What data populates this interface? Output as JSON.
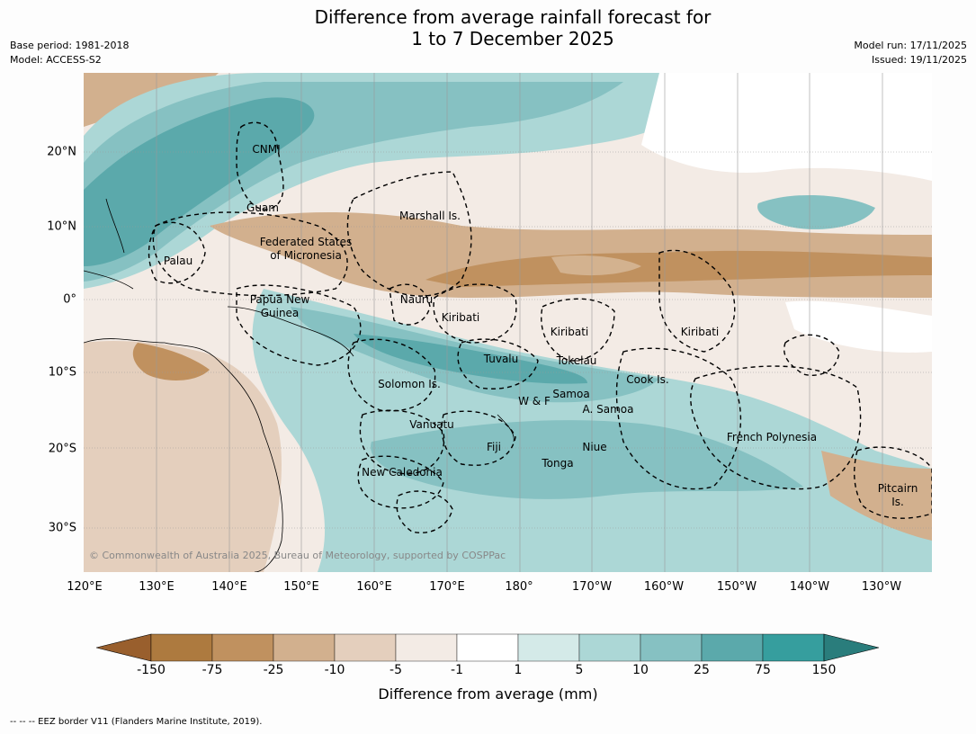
{
  "title": {
    "line1": "Difference from average rainfall forecast for",
    "line2": "1 to 7 December 2025"
  },
  "meta": {
    "base_period": "Base period: 1981-2018",
    "model": "Model: ACCESS-S2",
    "model_run": "Model run: 17/11/2025",
    "issued": "Issued: 19/11/2025"
  },
  "map": {
    "lat_ticks": [
      "20°N",
      "10°N",
      "0°",
      "10°S",
      "20°S",
      "30°S"
    ],
    "lon_ticks": [
      "120°E",
      "130°E",
      "140°E",
      "150°E",
      "160°E",
      "170°E",
      "180°",
      "170°W",
      "160°W",
      "150°W",
      "140°W",
      "130°W"
    ],
    "copyright": "© Commonwealth of Australia 2025, Bureau of Meteorology, supported by COSPPac",
    "regions": [
      "CNMI",
      "Guam",
      "Marshall Is.",
      "Federated States",
      "of Micronesia",
      "Palau",
      "Nauru",
      "Papua New",
      "Guinea",
      "Kiribati",
      "Kiribati",
      "Kiribati",
      "Tuvalu",
      "Tokelau",
      "Solomon Is.",
      "Cook Is.",
      "Samoa",
      "W & F",
      "A. Samoa",
      "Vanuatu",
      "Fiji",
      "Niue",
      "French Polynesia",
      "Tonga",
      "New Caledonia",
      "Pitcairn",
      "Is."
    ]
  },
  "colorbar": {
    "ticks": [
      "-150",
      "-75",
      "-25",
      "-10",
      "-5",
      "-1",
      "1",
      "5",
      "10",
      "25",
      "75",
      "150"
    ],
    "colors": [
      "#995f2d",
      "#ad7a3f",
      "#c0915f",
      "#d2b08e",
      "#e4cfbd",
      "#f3ebe5",
      "#ffffff",
      "#d4eae8",
      "#acd7d6",
      "#86c1c2",
      "#5ba9ab",
      "#369e9e",
      "#2a7d7c"
    ],
    "label": "Difference from average (mm)"
  },
  "footer": "-- -- -- EEZ border V11 (Flanders Marine Institute, 2019)."
}
